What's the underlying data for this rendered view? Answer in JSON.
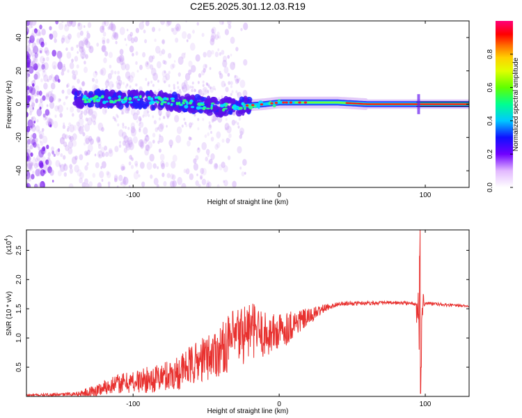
{
  "figure": {
    "title": "C2E5.2025.301.12.03.R19"
  },
  "chart_data": [
    {
      "type": "heatmap",
      "xlabel": "Height of straight line (km)",
      "ylabel": "Frequency (Hz)",
      "xlim": [
        -173,
        130
      ],
      "ylim": [
        -50,
        50
      ],
      "x_ticks": [
        -100,
        0,
        100
      ],
      "y_ticks": [
        -40,
        -20,
        0,
        20,
        40
      ],
      "colorbar": {
        "label": "Normalized spectral amplitude",
        "range": [
          0,
          1
        ],
        "ticks": [
          0.0,
          0.2,
          0.4,
          0.6,
          0.8
        ]
      },
      "ridge_center_freq_hz": [
        [
          -140,
          3
        ],
        [
          -120,
          3
        ],
        [
          -100,
          3
        ],
        [
          -80,
          2
        ],
        [
          -60,
          0
        ],
        [
          -40,
          -2
        ],
        [
          -25,
          -1
        ],
        [
          -10,
          0
        ],
        [
          0,
          1
        ],
        [
          20,
          1
        ],
        [
          40,
          1
        ],
        [
          60,
          0
        ],
        [
          80,
          0
        ],
        [
          95,
          0
        ],
        [
          130,
          0
        ]
      ]
    },
    {
      "type": "line",
      "xlabel": "Height of straight line (km)",
      "ylabel": "SNR (10 * v/v)",
      "y_multiplier_label": "(x10",
      "y_multiplier_exp": "4",
      "xlim": [
        -173,
        130
      ],
      "ylim": [
        0,
        2.85
      ],
      "x_ticks": [
        -100,
        0,
        100
      ],
      "y_ticks": [
        0.5,
        1.0,
        1.5,
        2.0,
        2.5
      ],
      "y_tick_labels": [
        "0.5",
        "1.0",
        "1.5",
        "2.0",
        "2.5"
      ],
      "series": [
        {
          "color": "#e8312f",
          "points": [
            [
              -173,
              0.02
            ],
            [
              -150,
              0.03
            ],
            [
              -135,
              0.05
            ],
            [
              -125,
              0.1
            ],
            [
              -115,
              0.2
            ],
            [
              -100,
              0.25
            ],
            [
              -85,
              0.3
            ],
            [
              -70,
              0.4
            ],
            [
              -55,
              0.6
            ],
            [
              -40,
              0.8
            ],
            [
              -30,
              1.0
            ],
            [
              -20,
              1.15
            ],
            [
              -10,
              1.05
            ],
            [
              0,
              1.1
            ],
            [
              10,
              1.25
            ],
            [
              20,
              1.35
            ],
            [
              30,
              1.5
            ],
            [
              40,
              1.58
            ],
            [
              60,
              1.6
            ],
            [
              80,
              1.6
            ],
            [
              90,
              1.6
            ],
            [
              95,
              1.55
            ],
            [
              97,
              1.5
            ],
            [
              100,
              1.6
            ],
            [
              115,
              1.56
            ],
            [
              130,
              1.55
            ]
          ],
          "noise_profile": [
            [
              -173,
              0.02
            ],
            [
              -140,
              0.03
            ],
            [
              -125,
              0.12
            ],
            [
              -100,
              0.2
            ],
            [
              -80,
              0.25
            ],
            [
              -60,
              0.35
            ],
            [
              -40,
              0.45
            ],
            [
              -25,
              0.55
            ],
            [
              -10,
              0.4
            ],
            [
              5,
              0.3
            ],
            [
              20,
              0.15
            ],
            [
              35,
              0.04
            ],
            [
              80,
              0.03
            ],
            [
              100,
              0.03
            ],
            [
              130,
              0.02
            ]
          ],
          "spike": {
            "x": 96.5,
            "max": 2.85,
            "min": 0.05
          }
        }
      ]
    }
  ]
}
